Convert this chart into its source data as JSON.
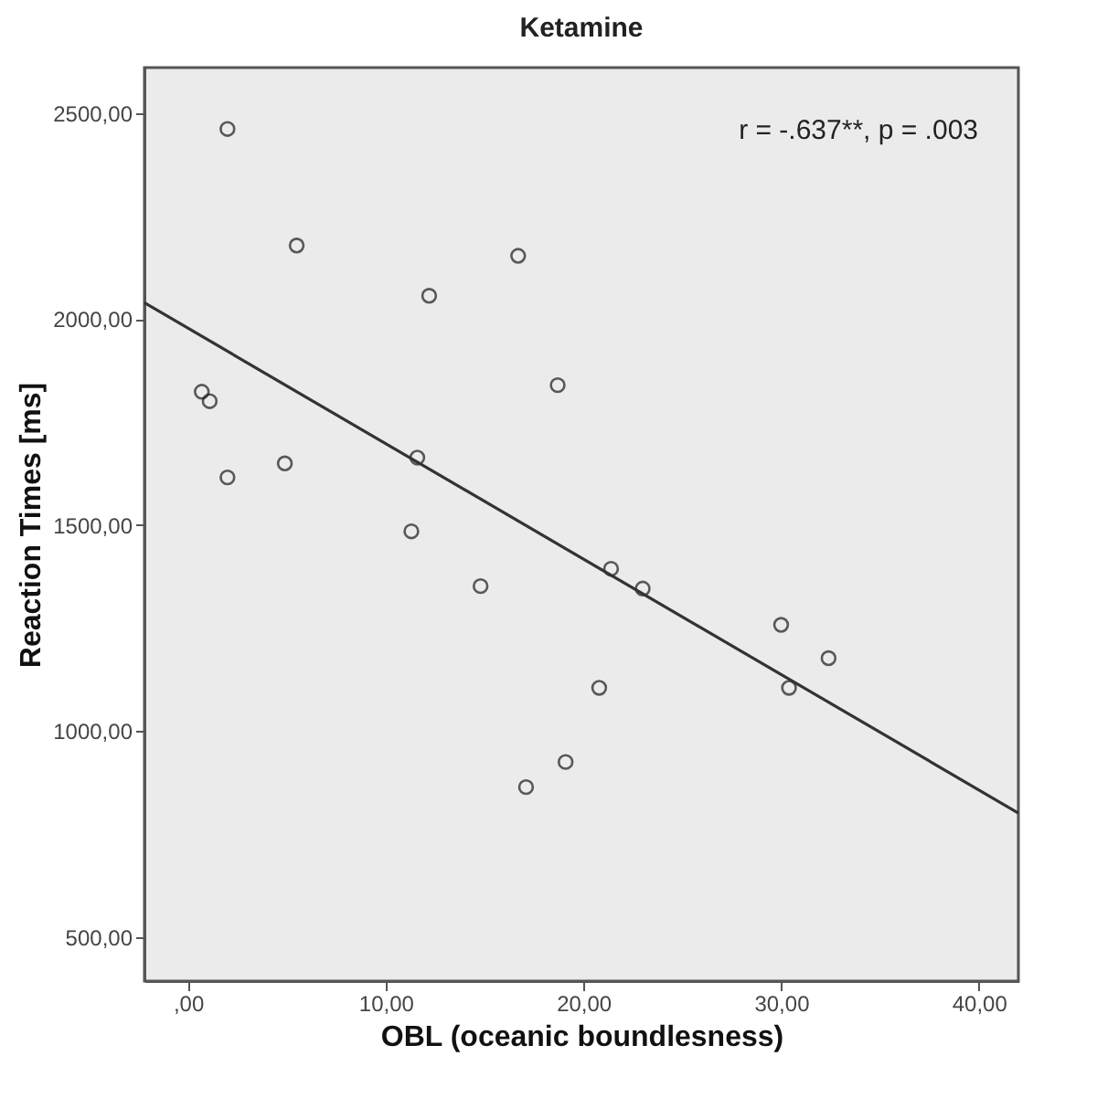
{
  "chart_data": {
    "type": "scatter",
    "title": "Ketamine",
    "xlabel": "OBL (oceanic boundlesness)",
    "ylabel": "Reaction Times [ms]",
    "annotations": [
      "r = -.637**, p = .003"
    ],
    "series": [
      {
        "marker": "circle",
        "color": "#1a1a1a",
        "x": [
          2.0,
          5.5,
          12.2,
          0.7,
          1.1,
          2.0,
          4.9,
          11.6,
          11.3,
          14.8,
          16.7,
          18.7,
          21.4,
          23.0,
          20.8,
          19.1,
          17.1,
          30.0,
          30.4,
          32.4
        ],
        "values": [
          2462,
          2179,
          2057,
          1824,
          1801,
          1616,
          1650,
          1664,
          1485,
          1352,
          2154,
          1840,
          1394,
          1346,
          1105,
          925,
          864,
          1258,
          1105,
          1177
        ]
      },
      {
        "type": "line",
        "color": "#333333",
        "x": [
          -2.2,
          42.0
        ],
        "values": [
          2040,
          801
        ]
      }
    ],
    "xlim": [
      -2.2,
      42.0
    ],
    "ylim": [
      393,
      2611
    ],
    "xticks": [
      {
        "value": 0,
        "label": ",00"
      },
      {
        "value": 10,
        "label": "10,00"
      },
      {
        "value": 20,
        "label": "20,00"
      },
      {
        "value": 30,
        "label": "30,00"
      },
      {
        "value": 40,
        "label": "40,00"
      }
    ],
    "yticks": [
      {
        "value": 500,
        "label": "500,00"
      },
      {
        "value": 1000,
        "label": "1000,00"
      },
      {
        "value": 1500,
        "label": "1500,00"
      },
      {
        "value": 2000,
        "label": "2000,00"
      },
      {
        "value": 2500,
        "label": "2500,00"
      }
    ]
  }
}
